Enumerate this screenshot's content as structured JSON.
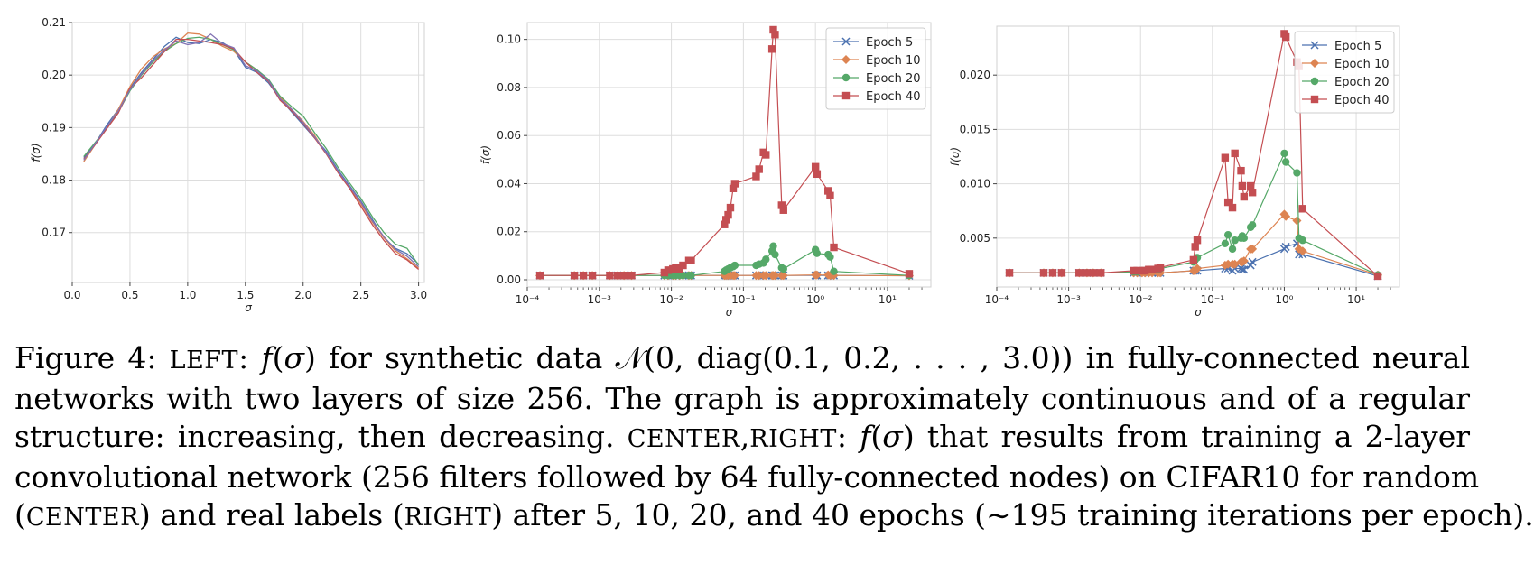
{
  "chart_data": [
    {
      "type": "line",
      "xlabel": "σ",
      "ylabel": "f(σ)",
      "xlim": [
        0.0,
        3.05
      ],
      "ylim": [
        0.1605,
        0.21
      ],
      "xticks": [
        0.0,
        0.5,
        1.0,
        1.5,
        2.0,
        2.5,
        3.0
      ],
      "xtick_labels": [
        "0.0",
        "0.5",
        "1.0",
        "1.5",
        "2.0",
        "2.5",
        "3.0"
      ],
      "yticks": [
        0.17,
        0.18,
        0.19,
        0.2,
        0.21
      ],
      "ytick_labels": [
        "0.17",
        "0.18",
        "0.19",
        "0.20",
        "0.21"
      ],
      "grid": true,
      "colors": [
        "#4c72b0",
        "#dd8452",
        "#55a868",
        "#c44e52",
        "#8172b3"
      ],
      "series": [
        {
          "x": [
            0.1,
            0.2,
            0.3,
            0.4,
            0.5,
            0.6,
            0.7,
            0.8,
            0.9,
            1.0,
            1.1,
            1.2,
            1.3,
            1.4,
            1.5,
            1.6,
            1.7,
            1.8,
            1.9,
            2.0,
            2.1,
            2.2,
            2.3,
            2.4,
            2.5,
            2.6,
            2.7,
            2.8,
            2.9,
            3.0
          ],
          "values": [
            0.1843,
            0.187,
            0.1905,
            0.1935,
            0.1975,
            0.2005,
            0.203,
            0.2055,
            0.2072,
            0.2062,
            0.206,
            0.2068,
            0.2062,
            0.2048,
            0.2015,
            0.2005,
            0.1985,
            0.1955,
            0.193,
            0.1905,
            0.188,
            0.1855,
            0.182,
            0.179,
            0.176,
            0.1725,
            0.169,
            0.167,
            0.166,
            0.164
          ]
        },
        {
          "x": [
            0.1,
            0.2,
            0.3,
            0.4,
            0.5,
            0.6,
            0.7,
            0.8,
            0.9,
            1.0,
            1.1,
            1.2,
            1.3,
            1.4,
            1.5,
            1.6,
            1.7,
            1.8,
            1.9,
            2.0,
            2.1,
            2.2,
            2.3,
            2.4,
            2.5,
            2.6,
            2.7,
            2.8,
            2.9,
            3.0
          ],
          "values": [
            0.1835,
            0.1868,
            0.19,
            0.1935,
            0.1978,
            0.2012,
            0.2035,
            0.205,
            0.206,
            0.208,
            0.2078,
            0.2068,
            0.2055,
            0.2045,
            0.2025,
            0.201,
            0.199,
            0.1958,
            0.1935,
            0.1912,
            0.1885,
            0.185,
            0.1815,
            0.1785,
            0.1755,
            0.172,
            0.169,
            0.1665,
            0.165,
            0.1632
          ]
        },
        {
          "x": [
            0.1,
            0.2,
            0.3,
            0.4,
            0.5,
            0.6,
            0.7,
            0.8,
            0.9,
            1.0,
            1.1,
            1.2,
            1.3,
            1.4,
            1.5,
            1.6,
            1.7,
            1.8,
            1.9,
            2.0,
            2.1,
            2.2,
            2.3,
            2.4,
            2.5,
            2.6,
            2.7,
            2.8,
            2.9,
            3.0
          ],
          "values": [
            0.1845,
            0.1872,
            0.19,
            0.193,
            0.197,
            0.2,
            0.2025,
            0.2045,
            0.206,
            0.207,
            0.2072,
            0.2068,
            0.2058,
            0.2048,
            0.2025,
            0.201,
            0.1992,
            0.196,
            0.194,
            0.1922,
            0.189,
            0.186,
            0.1825,
            0.1795,
            0.1765,
            0.173,
            0.17,
            0.1678,
            0.167,
            0.1638
          ]
        },
        {
          "x": [
            0.1,
            0.2,
            0.3,
            0.4,
            0.5,
            0.6,
            0.7,
            0.8,
            0.9,
            1.0,
            1.1,
            1.2,
            1.3,
            1.4,
            1.5,
            1.6,
            1.7,
            1.8,
            1.9,
            2.0,
            2.1,
            2.2,
            2.3,
            2.4,
            2.5,
            2.6,
            2.7,
            2.8,
            2.9,
            3.0
          ],
          "values": [
            0.184,
            0.1868,
            0.1898,
            0.1928,
            0.1975,
            0.1995,
            0.202,
            0.2045,
            0.2068,
            0.2068,
            0.2065,
            0.2062,
            0.2058,
            0.205,
            0.2025,
            0.2005,
            0.1988,
            0.1952,
            0.1932,
            0.1908,
            0.188,
            0.185,
            0.1815,
            0.1785,
            0.175,
            0.1715,
            0.1685,
            0.166,
            0.1648,
            0.163
          ]
        },
        {
          "x": [
            0.1,
            0.2,
            0.3,
            0.4,
            0.5,
            0.6,
            0.7,
            0.8,
            0.9,
            1.0,
            1.1,
            1.2,
            1.3,
            1.4,
            1.5,
            1.6,
            1.7,
            1.8,
            1.9,
            2.0,
            2.1,
            2.2,
            2.3,
            2.4,
            2.5,
            2.6,
            2.7,
            2.8,
            2.9,
            3.0
          ],
          "values": [
            0.1838,
            0.187,
            0.1902,
            0.1932,
            0.1972,
            0.2002,
            0.2028,
            0.2048,
            0.2065,
            0.2058,
            0.2062,
            0.2078,
            0.206,
            0.2052,
            0.2018,
            0.2008,
            0.199,
            0.1955,
            0.1935,
            0.191,
            0.1882,
            0.1852,
            0.1818,
            0.1788,
            0.1758,
            0.1722,
            0.1692,
            0.1668,
            0.1655,
            0.1635
          ]
        }
      ]
    },
    {
      "type": "line",
      "xscale": "log",
      "xlabel": "σ",
      "ylabel": "f(σ)",
      "xlim": [
        0.0001,
        40
      ],
      "ylim": [
        -0.003,
        0.107
      ],
      "xticks": [
        0.0001,
        0.001,
        0.01,
        0.1,
        1,
        10
      ],
      "xtick_labels": [
        "10⁻⁴",
        "10⁻³",
        "10⁻²",
        "10⁻¹",
        "10⁰",
        "10¹"
      ],
      "yticks": [
        0.0,
        0.02,
        0.04,
        0.06,
        0.08,
        0.1
      ],
      "ytick_labels": [
        "0.00",
        "0.02",
        "0.04",
        "0.06",
        "0.08",
        "0.10"
      ],
      "grid": true,
      "legend": "top-right",
      "x": [
        0.00015,
        0.00045,
        0.0006,
        0.0008,
        0.0014,
        0.0018,
        0.0022,
        0.0028,
        0.008,
        0.009,
        0.0105,
        0.0115,
        0.013,
        0.0145,
        0.0175,
        0.0188,
        0.0545,
        0.0575,
        0.0615,
        0.066,
        0.072,
        0.076,
        0.15,
        0.165,
        0.19,
        0.205,
        0.25,
        0.26,
        0.275,
        0.34,
        0.36,
        1.0,
        1.05,
        1.5,
        1.6,
        1.8,
        20
      ],
      "series": [
        {
          "name": "Epoch 5",
          "color": "#4c72b0",
          "marker": "x",
          "values": [
            0.0018,
            0.0018,
            0.0018,
            0.0018,
            0.0018,
            0.0018,
            0.0018,
            0.0018,
            0.0018,
            0.0018,
            0.0018,
            0.0018,
            0.0018,
            0.0018,
            0.0018,
            0.0018,
            0.0018,
            0.0018,
            0.0018,
            0.0018,
            0.0018,
            0.0018,
            0.0018,
            0.0018,
            0.0018,
            0.0018,
            0.0018,
            0.0018,
            0.0018,
            0.0018,
            0.0018,
            0.0018,
            0.0018,
            0.0018,
            0.0018,
            0.0018,
            0.0017
          ]
        },
        {
          "name": "Epoch 10",
          "color": "#dd8452",
          "marker": "D",
          "values": [
            0.0018,
            0.0018,
            0.0018,
            0.0018,
            0.0018,
            0.0018,
            0.0018,
            0.0018,
            0.0018,
            0.0018,
            0.0018,
            0.0018,
            0.0018,
            0.0018,
            0.0018,
            0.0018,
            0.0018,
            0.0018,
            0.0018,
            0.0018,
            0.0018,
            0.0018,
            0.0018,
            0.0018,
            0.0018,
            0.0018,
            0.0018,
            0.0018,
            0.0018,
            0.0018,
            0.0018,
            0.002,
            0.002,
            0.002,
            0.0018,
            0.0018,
            0.0017
          ]
        },
        {
          "name": "Epoch 20",
          "color": "#55a868",
          "marker": "o",
          "values": [
            0.0018,
            0.0018,
            0.0018,
            0.0018,
            0.0018,
            0.0018,
            0.0018,
            0.0018,
            0.0018,
            0.0018,
            0.0018,
            0.0018,
            0.0018,
            0.0018,
            0.0018,
            0.0018,
            0.0035,
            0.004,
            0.0045,
            0.005,
            0.0055,
            0.006,
            0.006,
            0.0065,
            0.007,
            0.0085,
            0.012,
            0.014,
            0.0105,
            0.005,
            0.0045,
            0.0125,
            0.011,
            0.0105,
            0.0095,
            0.0035,
            0.0018
          ]
        },
        {
          "name": "Epoch 40",
          "color": "#c44e52",
          "marker": "s",
          "values": [
            0.0018,
            0.0018,
            0.0018,
            0.0018,
            0.0018,
            0.0018,
            0.0018,
            0.0018,
            0.003,
            0.004,
            0.0045,
            0.005,
            0.0045,
            0.006,
            0.008,
            0.008,
            0.023,
            0.025,
            0.027,
            0.03,
            0.038,
            0.04,
            0.043,
            0.046,
            0.053,
            0.052,
            0.096,
            0.104,
            0.102,
            0.031,
            0.029,
            0.047,
            0.044,
            0.037,
            0.035,
            0.0135,
            0.0025
          ]
        }
      ]
    },
    {
      "type": "line",
      "xscale": "log",
      "xlabel": "σ",
      "ylabel": "f(σ)",
      "xlim": [
        0.0001,
        40
      ],
      "ylim": [
        0.0005,
        0.0245
      ],
      "xticks": [
        0.0001,
        0.001,
        0.01,
        0.1,
        1,
        10
      ],
      "xtick_labels": [
        "10⁻⁴",
        "10⁻³",
        "10⁻²",
        "10⁻¹",
        "10⁰",
        "10¹"
      ],
      "yticks": [
        0.005,
        0.01,
        0.015,
        0.02
      ],
      "ytick_labels": [
        "0.005",
        "0.010",
        "0.015",
        "0.020"
      ],
      "grid": true,
      "legend": "top-right",
      "x": [
        0.00015,
        0.00045,
        0.0006,
        0.0008,
        0.0014,
        0.0018,
        0.0022,
        0.0028,
        0.008,
        0.009,
        0.0105,
        0.0115,
        0.013,
        0.0145,
        0.0175,
        0.0188,
        0.0545,
        0.0575,
        0.0615,
        0.15,
        0.165,
        0.19,
        0.205,
        0.25,
        0.26,
        0.275,
        0.34,
        0.36,
        1.0,
        1.05,
        1.5,
        1.6,
        1.8,
        20
      ],
      "series": [
        {
          "name": "Epoch 5",
          "color": "#4c72b0",
          "marker": "x",
          "values": [
            0.0018,
            0.0018,
            0.0018,
            0.0018,
            0.0018,
            0.0018,
            0.0018,
            0.0018,
            0.0018,
            0.0018,
            0.0018,
            0.0018,
            0.0018,
            0.0018,
            0.0018,
            0.0018,
            0.002,
            0.002,
            0.002,
            0.0022,
            0.0022,
            0.002,
            0.0022,
            0.0022,
            0.0021,
            0.0021,
            0.0025,
            0.0028,
            0.004,
            0.0042,
            0.0045,
            0.0035,
            0.0035,
            0.0015
          ]
        },
        {
          "name": "Epoch 10",
          "color": "#dd8452",
          "marker": "D",
          "values": [
            0.0018,
            0.0018,
            0.0018,
            0.0018,
            0.0018,
            0.0018,
            0.0018,
            0.0018,
            0.0018,
            0.0018,
            0.0018,
            0.0018,
            0.0018,
            0.0018,
            0.0018,
            0.0018,
            0.002,
            0.002,
            0.0022,
            0.0025,
            0.0026,
            0.0026,
            0.0026,
            0.0028,
            0.0028,
            0.0029,
            0.004,
            0.004,
            0.0072,
            0.007,
            0.0066,
            0.004,
            0.0038,
            0.0016
          ]
        },
        {
          "name": "Epoch 20",
          "color": "#55a868",
          "marker": "o",
          "values": [
            0.0018,
            0.0018,
            0.0018,
            0.0018,
            0.0018,
            0.0018,
            0.0018,
            0.0018,
            0.0019,
            0.0019,
            0.002,
            0.002,
            0.0021,
            0.0021,
            0.0021,
            0.0022,
            0.0028,
            0.003,
            0.0032,
            0.0045,
            0.0053,
            0.004,
            0.0048,
            0.005,
            0.0052,
            0.005,
            0.006,
            0.0062,
            0.0128,
            0.012,
            0.011,
            0.005,
            0.0048,
            0.0016
          ]
        },
        {
          "name": "Epoch 40",
          "color": "#c44e52",
          "marker": "s",
          "values": [
            0.0018,
            0.0018,
            0.0018,
            0.0018,
            0.0018,
            0.0018,
            0.0018,
            0.0018,
            0.002,
            0.002,
            0.002,
            0.002,
            0.0021,
            0.0021,
            0.0022,
            0.0023,
            0.003,
            0.0042,
            0.0048,
            0.0124,
            0.0083,
            0.0078,
            0.0128,
            0.0112,
            0.0098,
            0.0088,
            0.0098,
            0.0092,
            0.0238,
            0.0235,
            0.0212,
            0.0208,
            0.0077,
            0.0015
          ]
        }
      ]
    }
  ],
  "caption": {
    "lines": [
      [
        {
          "t": "Figure 4: ",
          "s": "n"
        },
        {
          "t": "LEFT",
          "s": "sc"
        },
        {
          "t": ": ",
          "s": "n"
        },
        {
          "t": "f",
          "s": "i"
        },
        {
          "t": "(",
          "s": "n"
        },
        {
          "t": "σ",
          "s": "i"
        },
        {
          "t": ") for synthetic data ",
          "s": "n"
        },
        {
          "t": "𝒩",
          "s": "n"
        },
        {
          "t": "(0, diag(0.1, 0.2, . . . , 3.0)) in fully-connected neural",
          "s": "n"
        }
      ],
      [
        {
          "t": "networks with two layers of size 256. The graph is approximately continuous and of a regular",
          "s": "n"
        }
      ],
      [
        {
          "t": "structure: increasing, then decreasing. ",
          "s": "n"
        },
        {
          "t": "CENTER",
          "s": "sc"
        },
        {
          "t": ",",
          "s": "n"
        },
        {
          "t": "RIGHT",
          "s": "sc"
        },
        {
          "t": ": ",
          "s": "n"
        },
        {
          "t": "f",
          "s": "i"
        },
        {
          "t": "(",
          "s": "n"
        },
        {
          "t": "σ",
          "s": "i"
        },
        {
          "t": ") that results from training a 2-layer",
          "s": "n"
        }
      ],
      [
        {
          "t": "convolutional network (256 filters followed by 64 fully-connected nodes) on CIFAR10 for random",
          "s": "n"
        }
      ],
      [
        {
          "t": "(",
          "s": "n"
        },
        {
          "t": "CENTER",
          "s": "sc"
        },
        {
          "t": ") and real labels (",
          "s": "n"
        },
        {
          "t": "RIGHT",
          "s": "sc"
        },
        {
          "t": ") after 5, 10, 20, and 40 epochs (∼195 training iterations per epoch).",
          "s": "n"
        }
      ]
    ]
  }
}
